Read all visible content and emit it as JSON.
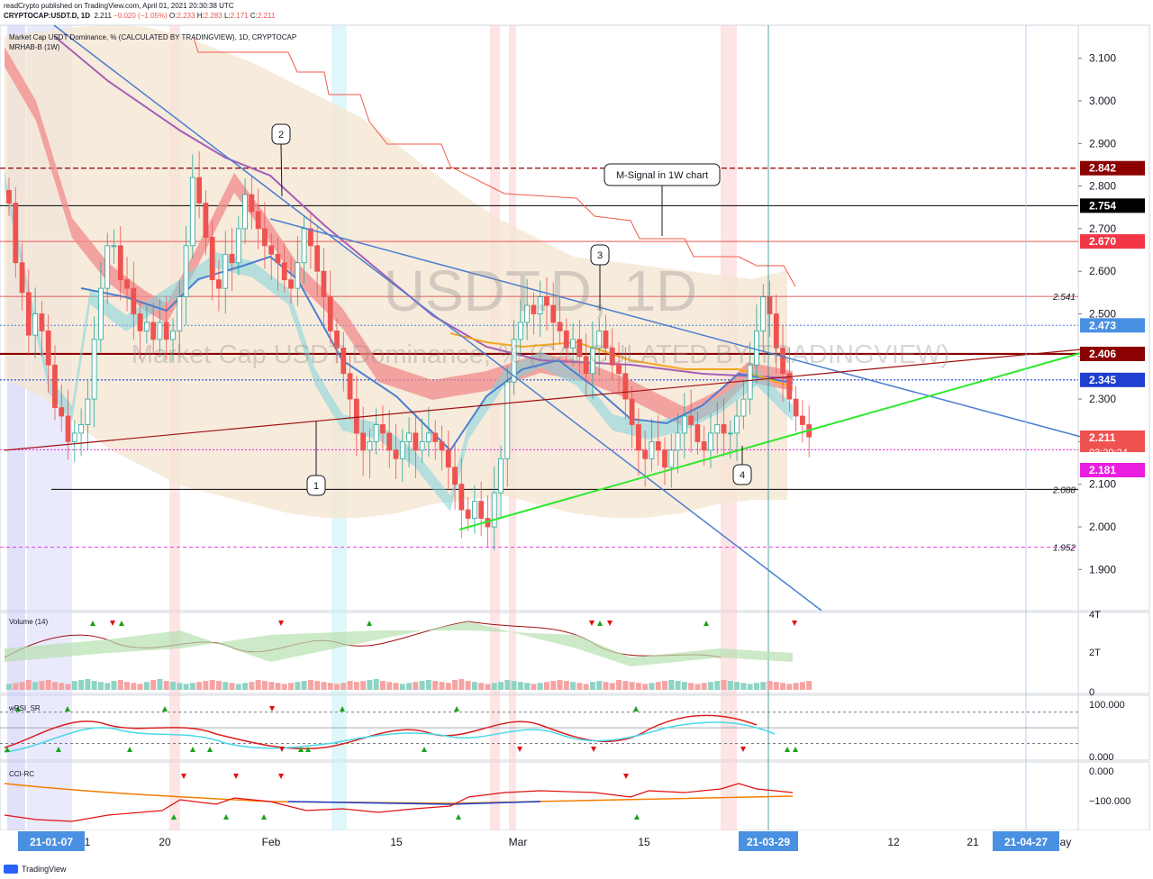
{
  "header": {
    "line1": "readCrypto published on TradingView.com, April 01, 2021 20:30:38 UTC",
    "symbol": "CRYPTOCAP:USDT.D, 1D",
    "last": "2.211",
    "change": "−0.020 (−1.05%)",
    "o_label": "O:",
    "o": "2.233",
    "h_label": "H:",
    "h": "2.283",
    "l_label": "L:",
    "l": "2.171",
    "c_label": "C:",
    "c": "2.211"
  },
  "legend": {
    "title": "Market Cap USDT Dominance, % (CALCULATED BY TRADINGVIEW), 1D, CRYPTOCAP",
    "indicator": "MRHAB-B (1W)"
  },
  "watermark": {
    "big": "USDT.D, 1D",
    "sub": "Market Cap USDT Dominance, % (CALCULATED BY TRADINGVIEW)"
  },
  "footer": {
    "brand": "TradingView"
  },
  "colors": {
    "up": "#26a69a",
    "down": "#ef5350",
    "red_band": "#f28b8b",
    "cyan_band": "#7fd3dc",
    "trend_blue": "#4a7fd0",
    "trend_green": "#2ee82e",
    "trend_darkred": "#8b1a1a",
    "magenta": "#e91ee0",
    "dark_red_label": "#8b0000"
  },
  "chart_data": [
    {
      "type": "candlestick",
      "title": "Market Cap USDT Dominance, % (CALCULATED BY TRADINGVIEW), 1D, CRYPTOCAP",
      "ylim": [
        1.82,
        3.16
      ],
      "y_ticks": [
        "3.100",
        "3.000",
        "2.900",
        "2.800",
        "2.700",
        "2.600",
        "2.500",
        "2.400",
        "2.300",
        "2.200",
        "2.100",
        "2.000",
        "1.900"
      ],
      "x_ticks": [
        "21-01-07",
        "1",
        "20",
        "Feb",
        "15",
        "Mar",
        "15",
        "21-03-29",
        "12",
        "21",
        "21-04-27",
        "ay"
      ],
      "last_close": 2.211,
      "countdown": "03:29:24",
      "price_labels": [
        {
          "value": 2.842,
          "text": "2.842",
          "bg": "#8b0000"
        },
        {
          "value": 2.754,
          "text": "2.754",
          "bg": "#000000"
        },
        {
          "value": 2.67,
          "text": "2.670",
          "bg": "#f23645"
        },
        {
          "value": 2.473,
          "text": "2.473",
          "bg": "#4a90e2"
        },
        {
          "value": 2.406,
          "text": "2.406",
          "bg": "#8b0000"
        },
        {
          "value": 2.345,
          "text": "2.345",
          "bg": "#1e3fcf"
        },
        {
          "value": 2.211,
          "text": "2.211",
          "bg": "#ef5350"
        },
        {
          "value": 2.181,
          "text": "2.181",
          "bg": "#e91ee0"
        }
      ],
      "level_notes": [
        {
          "value": 2.541,
          "text": "2.541"
        },
        {
          "value": 2.088,
          "text": "2.088"
        },
        {
          "value": 1.952,
          "text": "1.952"
        }
      ],
      "callouts": [
        "1",
        "2",
        "3",
        "4",
        "M-Signal in 1W chart"
      ],
      "candles_close": [
        2.76,
        2.62,
        2.55,
        2.45,
        2.5,
        2.46,
        2.38,
        2.28,
        2.26,
        2.2,
        2.22,
        2.24,
        2.3,
        2.44,
        2.56,
        2.66,
        2.66,
        2.58,
        2.56,
        2.5,
        2.46,
        2.48,
        2.44,
        2.48,
        2.44,
        2.46,
        2.54,
        2.66,
        2.82,
        2.76,
        2.68,
        2.58,
        2.56,
        2.64,
        2.62,
        2.7,
        2.78,
        2.74,
        2.7,
        2.66,
        2.64,
        2.62,
        2.58,
        2.56,
        2.62,
        2.7,
        2.66,
        2.6,
        2.54,
        2.46,
        2.42,
        2.36,
        2.3,
        2.22,
        2.18,
        2.2,
        2.24,
        2.22,
        2.18,
        2.16,
        2.2,
        2.22,
        2.18,
        2.2,
        2.22,
        2.2,
        2.18,
        2.14,
        2.1,
        2.04,
        2.02,
        2.06,
        2.02,
        2.0,
        2.08,
        2.16,
        2.34,
        2.44,
        2.48,
        2.52,
        2.5,
        2.54,
        2.52,
        2.48,
        2.46,
        2.42,
        2.44,
        2.4,
        2.36,
        2.42,
        2.46,
        2.42,
        2.38,
        2.36,
        2.3,
        2.24,
        2.18,
        2.16,
        2.2,
        2.18,
        2.14,
        2.18,
        2.22,
        2.26,
        2.24,
        2.2,
        2.18,
        2.22,
        2.24,
        2.22,
        2.22,
        2.26,
        2.3,
        2.38,
        2.46,
        2.54,
        2.5,
        2.42,
        2.36,
        2.3,
        2.26,
        2.24,
        2.211
      ]
    },
    {
      "type": "bar",
      "title": "Volume (14)",
      "y_ticks": [
        "4T",
        "2T",
        "0"
      ],
      "values": [
        0.3,
        0.35,
        0.4,
        0.5,
        0.4,
        0.45,
        0.5,
        0.4,
        0.35,
        0.3,
        0.45,
        0.5,
        0.55,
        0.45,
        0.4,
        0.35,
        0.45,
        0.5,
        0.4,
        0.35,
        0.3,
        0.4,
        0.5,
        0.55,
        0.45,
        0.4,
        0.35,
        0.3,
        0.35,
        0.4,
        0.45,
        0.5,
        0.45,
        0.4,
        0.35,
        0.3,
        0.35,
        0.4,
        0.5,
        0.45,
        0.4,
        0.35,
        0.3,
        0.35,
        0.4,
        0.45,
        0.5,
        0.45,
        0.4,
        0.35,
        0.3,
        0.35,
        0.45,
        0.4,
        0.45,
        0.5,
        0.55,
        0.45,
        0.4,
        0.35,
        0.3,
        0.35,
        0.4,
        0.45,
        0.5,
        0.45,
        0.4,
        0.35,
        0.5,
        0.55,
        0.45,
        0.4,
        0.35,
        0.3,
        0.35,
        0.4,
        0.5,
        0.45,
        0.4,
        0.35,
        0.3,
        0.35,
        0.4,
        0.45,
        0.5,
        0.45,
        0.4,
        0.35,
        0.3,
        0.4,
        0.45,
        0.4,
        0.35,
        0.5,
        0.45,
        0.4,
        0.35,
        0.3,
        0.35,
        0.4,
        0.45,
        0.5,
        0.45,
        0.4,
        0.35,
        0.3,
        0.35,
        0.4,
        0.45,
        0.5,
        0.45,
        0.4,
        0.35,
        0.3,
        0.35,
        0.4,
        0.45,
        0.4,
        0.35,
        0.3,
        0.35,
        0.4,
        0.45
      ]
    },
    {
      "type": "line",
      "title": "wRSI_SR",
      "y_ticks": [
        "100.000",
        "0.000"
      ],
      "ylim": [
        -5,
        105
      ]
    },
    {
      "type": "line",
      "title": "CCI-RC",
      "y_ticks": [
        "0.000",
        "−100.000"
      ],
      "ylim": [
        -200,
        40
      ]
    }
  ]
}
